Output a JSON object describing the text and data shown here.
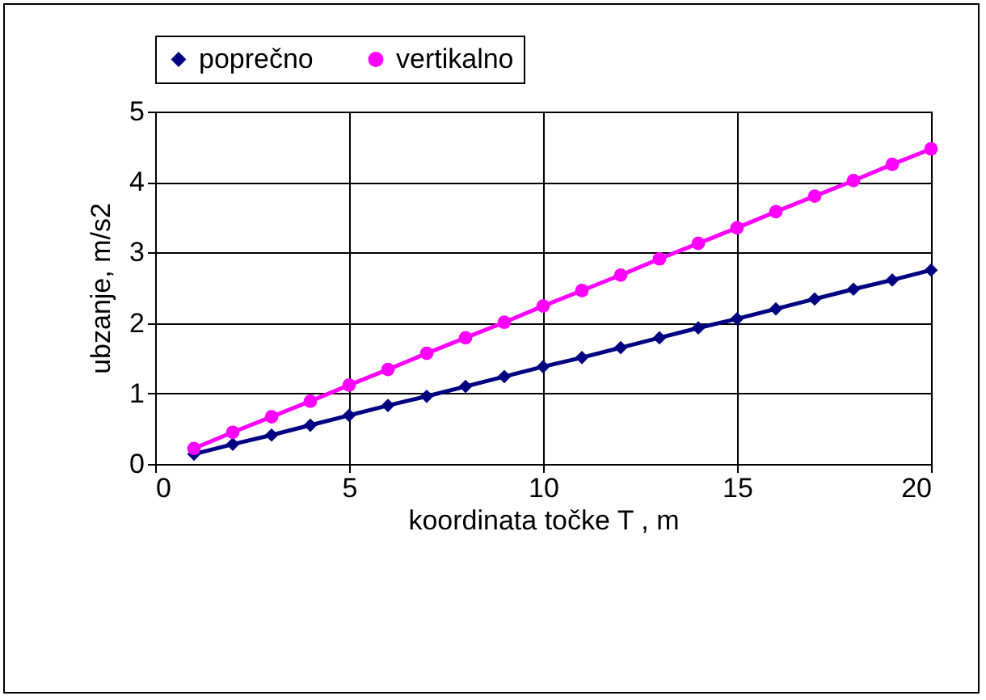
{
  "chart_data": {
    "type": "line",
    "xlabel": "koordinata točke T , m",
    "ylabel": "ubzanje, m/s2",
    "x": [
      1,
      2,
      3,
      4,
      5,
      6,
      7,
      8,
      9,
      10,
      11,
      12,
      13,
      14,
      15,
      16,
      17,
      18,
      19,
      20
    ],
    "series": [
      {
        "name": "poprečno",
        "color": "#000080",
        "marker": "diamond",
        "values": [
          0.14,
          0.28,
          0.41,
          0.55,
          0.69,
          0.83,
          0.96,
          1.1,
          1.24,
          1.38,
          1.51,
          1.65,
          1.79,
          1.93,
          2.06,
          2.2,
          2.34,
          2.48,
          2.61,
          2.75
        ]
      },
      {
        "name": "vertikalno",
        "color": "#ff00ff",
        "marker": "circle",
        "values": [
          0.22,
          0.45,
          0.67,
          0.89,
          1.12,
          1.34,
          1.57,
          1.79,
          2.01,
          2.24,
          2.46,
          2.68,
          2.91,
          3.13,
          3.35,
          3.58,
          3.8,
          4.02,
          4.25,
          4.47
        ]
      }
    ],
    "xlim": [
      0,
      20
    ],
    "xticks": [
      0,
      5,
      10,
      15,
      20
    ],
    "ylim": [
      0,
      5
    ],
    "yticks": [
      0,
      1,
      2,
      3,
      4,
      5
    ],
    "grid": true,
    "legend": "top",
    "line_style": "solid"
  }
}
